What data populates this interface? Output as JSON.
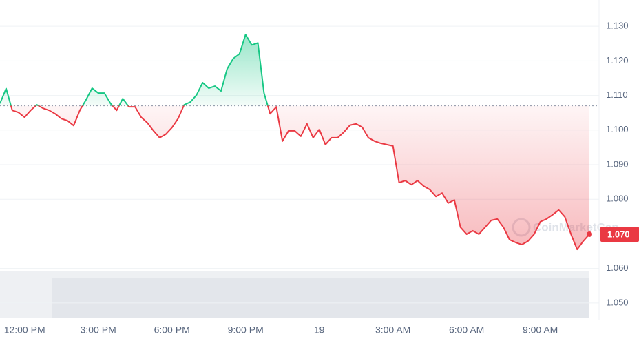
{
  "chart_data": {
    "type": "line",
    "categories": [
      null,
      null,
      null,
      null,
      "12:00 PM",
      null,
      null,
      null,
      null,
      null,
      null,
      null,
      null,
      null,
      null,
      null,
      "3:00 PM",
      null,
      null,
      null,
      null,
      null,
      null,
      null,
      null,
      null,
      null,
      null,
      "6:00 PM",
      null,
      null,
      null,
      null,
      null,
      null,
      null,
      null,
      null,
      null,
      null,
      "9:00 PM",
      null,
      null,
      null,
      null,
      null,
      null,
      null,
      null,
      null,
      null,
      null,
      "19",
      null,
      null,
      null,
      null,
      null,
      null,
      null,
      null,
      null,
      null,
      null,
      "3:00 AM",
      null,
      null,
      null,
      null,
      null,
      null,
      null,
      null,
      null,
      null,
      null,
      "6:00 AM",
      null,
      null,
      null,
      null,
      null,
      null,
      null,
      null,
      null,
      null,
      null,
      "9:00 AM",
      null,
      null,
      null,
      null,
      null,
      null,
      null,
      null
    ],
    "values": [
      1.1077,
      1.112,
      1.1057,
      1.1051,
      1.1037,
      1.1057,
      1.1073,
      1.1063,
      1.1057,
      1.1047,
      1.1033,
      1.1027,
      1.1013,
      1.1057,
      1.1087,
      1.1121,
      1.1107,
      1.1107,
      1.1077,
      1.1057,
      1.1091,
      1.1067,
      1.1067,
      1.1037,
      1.1021,
      1.0998,
      1.0978,
      1.0988,
      1.1007,
      1.1033,
      1.1073,
      1.1081,
      1.1101,
      1.1137,
      1.1121,
      1.1127,
      1.1113,
      1.1177,
      1.1207,
      1.122,
      1.1276,
      1.1246,
      1.1252,
      1.1107,
      1.1047,
      1.1067,
      1.0968,
      1.0998,
      1.0998,
      1.0982,
      1.1018,
      1.0978,
      1.1002,
      1.0958,
      1.0978,
      1.0978,
      1.0994,
      1.1014,
      1.1018,
      1.1008,
      1.0978,
      1.0968,
      1.0962,
      1.0958,
      1.0954,
      1.0848,
      1.0854,
      1.0842,
      1.0854,
      1.0838,
      1.0828,
      1.0808,
      1.0818,
      1.0789,
      1.0798,
      1.0719,
      1.0699,
      1.0709,
      1.0699,
      1.0719,
      1.0739,
      1.0743,
      1.0719,
      1.0683,
      1.0675,
      1.0669,
      1.0679,
      1.0699,
      1.0735,
      1.0743,
      1.0755,
      1.0769,
      1.0749,
      1.0699,
      1.0655,
      1.0679,
      1.0699
    ],
    "baseline": 1.107,
    "up_color": "#16c784",
    "down_color": "#ea3943",
    "ylim": [
      1.045,
      1.1376
    ],
    "yticks": [
      {
        "value": 1.05,
        "label": "1.050"
      },
      {
        "value": 1.06,
        "label": "1.060"
      },
      {
        "value": 1.07,
        "label": "1.070"
      },
      {
        "value": 1.08,
        "label": "1.080"
      },
      {
        "value": 1.09,
        "label": "1.090"
      },
      {
        "value": 1.1,
        "label": "1.100"
      },
      {
        "value": 1.11,
        "label": "1.110"
      },
      {
        "value": 1.12,
        "label": "1.120"
      },
      {
        "value": 1.13,
        "label": "1.130"
      }
    ],
    "grid": true,
    "last_price_label": "1.070",
    "watermark": "CoinMarketCap"
  }
}
